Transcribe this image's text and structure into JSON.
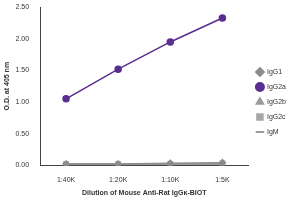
{
  "chart_data": {
    "type": "line",
    "x_label": "Dilution of Mouse Anti-Rat IgGκ-BIOT",
    "y_label": "O.D. at 405 nm",
    "categories": [
      "1:40K",
      "1:20K",
      "1:10K",
      "1:5K"
    ],
    "series": [
      {
        "name": "IgG1",
        "color": "#8c8c8c",
        "marker": "diamond",
        "values": [
          0.02,
          0.02,
          0.03,
          0.04
        ]
      },
      {
        "name": "IgG2a",
        "color": "#5a2d91",
        "marker": "circle",
        "values": [
          1.05,
          1.52,
          1.95,
          2.33
        ]
      },
      {
        "name": "IgG2b",
        "color": "#9a9a9a",
        "marker": "triangle",
        "values": [
          0.01,
          0.01,
          0.02,
          0.02
        ]
      },
      {
        "name": "IgG2c",
        "color": "#a6a6a6",
        "marker": "square",
        "values": [
          0.02,
          0.02,
          0.02,
          0.03
        ]
      },
      {
        "name": "IgM",
        "color": "#7a7a7a",
        "marker": "none",
        "values": [
          0.01,
          0.01,
          0.02,
          0.02
        ]
      }
    ],
    "ylim": [
      0,
      2.5
    ],
    "yticks": [
      {
        "value": 0,
        "label": "0.00"
      },
      {
        "value": 0.5,
        "label": "0.50"
      },
      {
        "value": 1,
        "label": "1.00"
      },
      {
        "value": 1.5,
        "label": "1.50"
      },
      {
        "value": 2,
        "label": "2.00"
      },
      {
        "value": 2.5,
        "label": "2.50"
      }
    ],
    "grid": false,
    "legend": "right"
  }
}
